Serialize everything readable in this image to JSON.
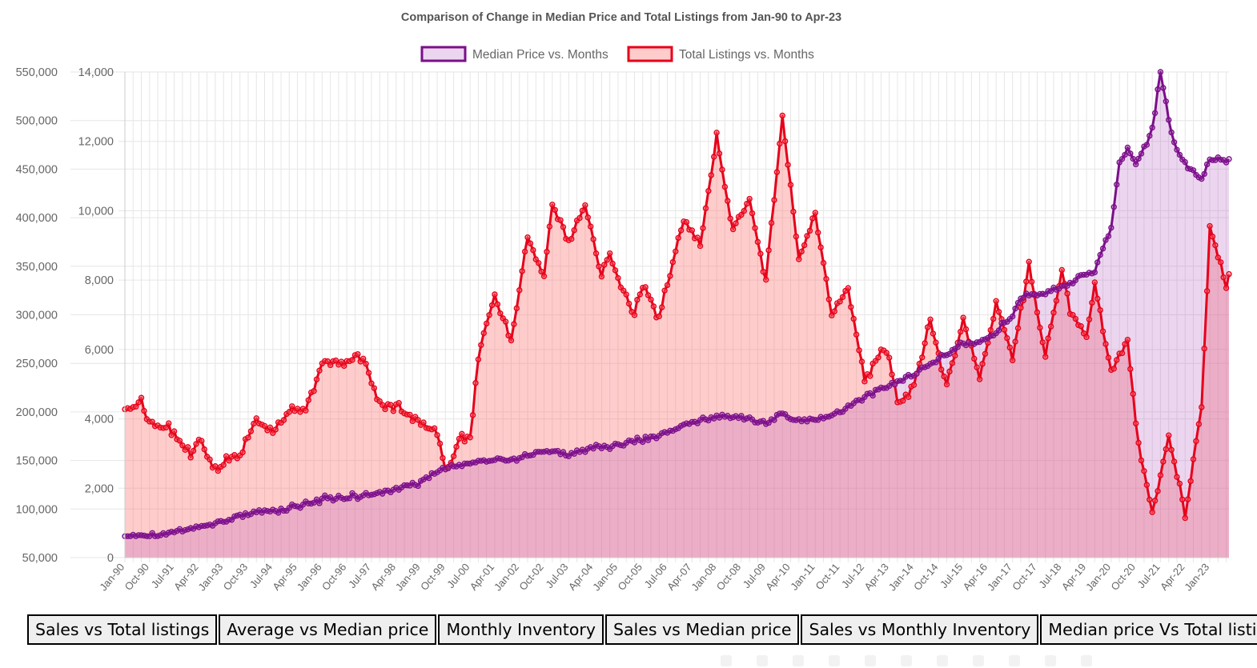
{
  "chart_data": {
    "type": "line",
    "title": "Comparison of Change in Median Price and Total Listings from Jan-90 to Apr-23",
    "x_start": "Jan-90",
    "x_end": "Apr-23",
    "xlabels": [
      "Jan-90",
      "Oct-90",
      "Jul-91",
      "Apr-92",
      "Jan-93",
      "Oct-93",
      "Jul-94",
      "Apr-95",
      "Jan-96",
      "Oct-96",
      "Jul-97",
      "Apr-98",
      "Jan-99",
      "Oct-99",
      "Jul-00",
      "Apr-01",
      "Jan-02",
      "Oct-02",
      "Jul-03",
      "Apr-04",
      "Jan-05",
      "Oct-05",
      "Jul-06",
      "Apr-07",
      "Jan-08",
      "Oct-08",
      "Jul-09",
      "Apr-10",
      "Jan-11",
      "Oct-11",
      "Jul-12",
      "Apr-13",
      "Jan-14",
      "Oct-14",
      "Jul-15",
      "Apr-16",
      "Jan-17",
      "Oct-17",
      "Jul-18",
      "Apr-19",
      "Jan-20",
      "Oct-20",
      "Jul-21",
      "Apr-22",
      "Jan-23"
    ],
    "y_left": {
      "min": 50000,
      "max": 550000,
      "ticks": [
        "50,000",
        "100,000",
        "150,000",
        "200,000",
        "250,000",
        "300,000",
        "350,000",
        "400,000",
        "450,000",
        "500,000",
        "550,000"
      ]
    },
    "y_right": {
      "min": 0,
      "max": 14000,
      "ticks": [
        "0",
        "2,000",
        "4,000",
        "6,000",
        "8,000",
        "10,000",
        "12,000",
        "14,000"
      ]
    },
    "grid": true,
    "legend_position": "top",
    "series": [
      {
        "name": "Median Price vs. Months",
        "axis": "left",
        "color": "#7b0f8a",
        "fill": "rgba(168,70,180,0.22)",
        "anchors": [
          [
            0,
            72000
          ],
          [
            9,
            72000
          ],
          [
            18,
            76000
          ],
          [
            27,
            82000
          ],
          [
            36,
            88000
          ],
          [
            45,
            94000
          ],
          [
            54,
            98000
          ],
          [
            63,
            102000
          ],
          [
            72,
            110000
          ],
          [
            81,
            112000
          ],
          [
            90,
            115000
          ],
          [
            99,
            120000
          ],
          [
            108,
            128000
          ],
          [
            117,
            142000
          ],
          [
            126,
            148000
          ],
          [
            135,
            150000
          ],
          [
            144,
            152000
          ],
          [
            153,
            160000
          ],
          [
            162,
            156000
          ],
          [
            171,
            163000
          ],
          [
            180,
            166000
          ],
          [
            189,
            172000
          ],
          [
            198,
            178000
          ],
          [
            207,
            190000
          ],
          [
            216,
            195000
          ],
          [
            225,
            194000
          ],
          [
            234,
            188000
          ],
          [
            240,
            200000
          ],
          [
            243,
            192000
          ],
          [
            252,
            192000
          ],
          [
            261,
            200000
          ],
          [
            270,
            215000
          ],
          [
            279,
            228000
          ],
          [
            288,
            238000
          ],
          [
            297,
            255000
          ],
          [
            306,
            270000
          ],
          [
            315,
            275000
          ],
          [
            324,
            300000
          ],
          [
            327,
            318000
          ],
          [
            333,
            320000
          ],
          [
            339,
            325000
          ],
          [
            348,
            338000
          ],
          [
            354,
            346000
          ],
          [
            360,
            390000
          ],
          [
            363,
            455000
          ],
          [
            366,
            470000
          ],
          [
            369,
            455000
          ],
          [
            375,
            490000
          ],
          [
            378,
            550000
          ],
          [
            381,
            500000
          ],
          [
            384,
            470000
          ],
          [
            387,
            455000
          ],
          [
            393,
            440000
          ],
          [
            396,
            460000
          ]
        ],
        "note_min": 72000,
        "note_max": 550000
      },
      {
        "name": "Total Listings vs. Months",
        "axis": "right",
        "color": "#e6001a",
        "fill": "rgba(255,120,120,0.38)",
        "anchors": [
          [
            0,
            4300
          ],
          [
            6,
            4500
          ],
          [
            9,
            3900
          ],
          [
            15,
            3800
          ],
          [
            24,
            2900
          ],
          [
            27,
            3500
          ],
          [
            33,
            2500
          ],
          [
            39,
            2900
          ],
          [
            42,
            2900
          ],
          [
            48,
            4000
          ],
          [
            51,
            3800
          ],
          [
            54,
            3700
          ],
          [
            60,
            4200
          ],
          [
            66,
            4300
          ],
          [
            72,
            5600
          ],
          [
            81,
            5600
          ],
          [
            84,
            5900
          ],
          [
            87,
            5700
          ],
          [
            93,
            4400
          ],
          [
            99,
            4400
          ],
          [
            108,
            3900
          ],
          [
            114,
            3600
          ],
          [
            117,
            2500
          ],
          [
            123,
            3500
          ],
          [
            126,
            3400
          ],
          [
            129,
            5800
          ],
          [
            135,
            7600
          ],
          [
            141,
            6200
          ],
          [
            147,
            9200
          ],
          [
            153,
            8100
          ],
          [
            156,
            10200
          ],
          [
            162,
            9200
          ],
          [
            168,
            10100
          ],
          [
            174,
            8100
          ],
          [
            177,
            8800
          ],
          [
            180,
            8000
          ],
          [
            186,
            7000
          ],
          [
            189,
            7900
          ],
          [
            195,
            6900
          ],
          [
            204,
            9800
          ],
          [
            210,
            9000
          ],
          [
            216,
            12100
          ],
          [
            222,
            9500
          ],
          [
            228,
            10300
          ],
          [
            234,
            8000
          ],
          [
            240,
            12700
          ],
          [
            246,
            8600
          ],
          [
            252,
            10000
          ],
          [
            258,
            7000
          ],
          [
            264,
            7800
          ],
          [
            270,
            5100
          ],
          [
            276,
            6000
          ],
          [
            279,
            5800
          ],
          [
            282,
            4400
          ],
          [
            288,
            5000
          ],
          [
            294,
            6800
          ],
          [
            300,
            4900
          ],
          [
            306,
            6900
          ],
          [
            312,
            5200
          ],
          [
            318,
            7300
          ],
          [
            324,
            5700
          ],
          [
            330,
            8400
          ],
          [
            336,
            5800
          ],
          [
            342,
            8300
          ],
          [
            345,
            7100
          ],
          [
            351,
            6300
          ],
          [
            354,
            7800
          ],
          [
            360,
            5400
          ],
          [
            366,
            6300
          ],
          [
            369,
            3800
          ],
          [
            375,
            1200
          ],
          [
            381,
            3500
          ],
          [
            387,
            1200
          ],
          [
            393,
            4300
          ],
          [
            396,
            9600
          ],
          [
            402,
            7800
          ],
          [
            403,
            8200
          ]
        ],
        "note_min": 1100,
        "note_max": 12800
      }
    ],
    "tabs": [
      "Sales vs Total listings",
      "Average vs Median price",
      "Monthly Inventory",
      "Sales vs Median price",
      "Sales vs Monthly Inventory",
      "Median price Vs Total listings"
    ]
  }
}
